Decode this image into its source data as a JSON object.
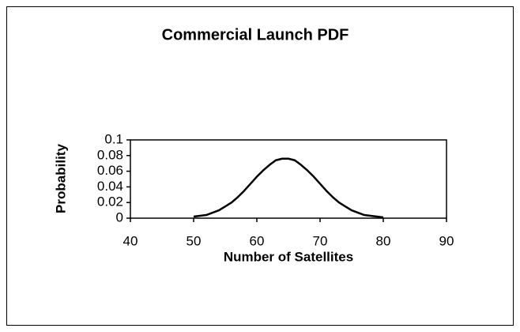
{
  "chart_data": {
    "type": "line",
    "title": "Commercial Launch PDF",
    "xlabel": "Number of Satellites",
    "ylabel": "Probability",
    "x": [
      50,
      51,
      52,
      53,
      54,
      55,
      56,
      57,
      58,
      59,
      60,
      61,
      62,
      63,
      64,
      65,
      66,
      67,
      68,
      69,
      70,
      71,
      72,
      73,
      74,
      75,
      76,
      77,
      78,
      79,
      80
    ],
    "series": [
      {
        "name": "PDF",
        "color": "#000000",
        "values": [
          0.002,
          0.003,
          0.004,
          0.007,
          0.01,
          0.015,
          0.02,
          0.027,
          0.035,
          0.044,
          0.053,
          0.061,
          0.068,
          0.074,
          0.076,
          0.076,
          0.074,
          0.068,
          0.061,
          0.053,
          0.044,
          0.035,
          0.027,
          0.02,
          0.015,
          0.01,
          0.007,
          0.004,
          0.003,
          0.002,
          0.001
        ]
      }
    ],
    "xlim": [
      40,
      90
    ],
    "xticks": [
      40,
      50,
      60,
      70,
      80,
      90
    ],
    "ylim": [
      0,
      0.1
    ],
    "yticks": [
      0,
      0.02,
      0.04,
      0.06,
      0.08,
      0.1
    ],
    "grid": false,
    "legend": false
  }
}
